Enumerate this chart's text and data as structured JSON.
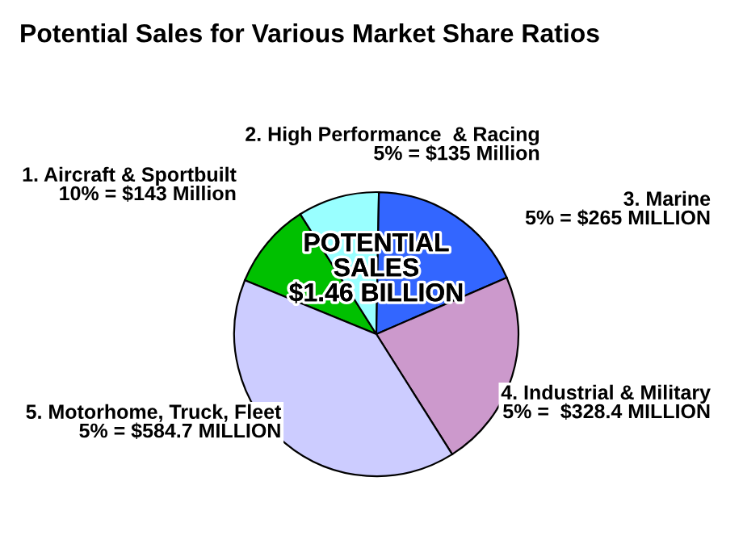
{
  "chart_data": {
    "type": "pie",
    "title": "Potential Sales for Various Market Share Ratios",
    "categories": [
      "1. Aircraft & Sportbuilt",
      "2. High Performance  & Racing",
      "3. Marine",
      "4. Industrial & Military",
      "5. Motorhome, Truck, Fleet"
    ],
    "values": [
      143,
      135,
      265,
      328.4,
      584.7
    ],
    "value_labels": [
      "10% = $143 Million",
      "5% = $135 Million",
      "5% = $265 MILLION",
      "5% =  $328.4 MILLION",
      "5% = $584.7 MILLION"
    ],
    "colors": [
      "#00c000",
      "#99ffff",
      "#3366ff",
      "#cc99cc",
      "#ccccff"
    ],
    "annotations": [
      "POTENTIAL\nSALES\n$1.46 BILLION"
    ],
    "legend": false
  }
}
